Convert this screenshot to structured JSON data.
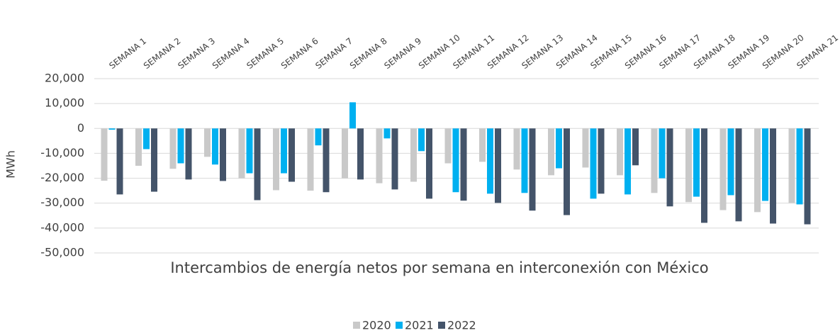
{
  "chart_data": {
    "type": "bar",
    "title": "Intercambios de energía netos por semana en interconexión con México",
    "ylabel": "MWh",
    "categories": [
      "SEMANA 1",
      "SEMANA 2",
      "SEMANA 3",
      "SEMANA 4",
      "SEMANA 5",
      "SEMANA 6",
      "SEMANA 7",
      "SEMANA 8",
      "SEMANA 9",
      "SEMANA 10",
      "SEMANA 11",
      "SEMANA 12",
      "SEMANA 13",
      "SEMANA 14",
      "SEMANA 15",
      "SEMANA 16",
      "SEMANA 17",
      "SEMANA 18",
      "SEMANA 19",
      "SEMANA 20",
      "SEMANA 21"
    ],
    "series": [
      {
        "name": "2020",
        "color": "#c9c9c9",
        "values": [
          -21000,
          -15000,
          -16200,
          -11400,
          -20000,
          -24800,
          -25000,
          -20000,
          -22000,
          -21400,
          -14000,
          -13400,
          -16500,
          -18800,
          -15700,
          -18800,
          -25900,
          -29600,
          -32800,
          -33600,
          -29900
        ]
      },
      {
        "name": "2021",
        "color": "#00b0f0",
        "values": [
          -500,
          -8300,
          -14000,
          -14500,
          -18000,
          -18000,
          -6800,
          10500,
          -4000,
          -9100,
          -25600,
          -26200,
          -25900,
          -16000,
          -28200,
          -26500,
          -20000,
          -27400,
          -26800,
          -29100,
          -30500
        ]
      },
      {
        "name": "2022",
        "color": "#44546a",
        "values": [
          -26500,
          -25400,
          -20500,
          -21100,
          -28800,
          -21400,
          -25600,
          -20500,
          -24500,
          -28200,
          -29000,
          -29900,
          -33000,
          -34800,
          -26200,
          -14800,
          -31300,
          -37900,
          -37300,
          -38200,
          -38500
        ]
      }
    ],
    "ylim": [
      -50000,
      20000
    ],
    "yticks": [
      {
        "value": -50000,
        "label": "-50,000"
      },
      {
        "value": -40000,
        "label": "-40,000"
      },
      {
        "value": -30000,
        "label": "-30,000"
      },
      {
        "value": -20000,
        "label": "-20,000"
      },
      {
        "value": -10000,
        "label": "-10,000"
      },
      0,
      {
        "value": 10000,
        "label": "10,000"
      },
      {
        "value": 20000,
        "label": "20,000"
      }
    ],
    "grid": true
  }
}
